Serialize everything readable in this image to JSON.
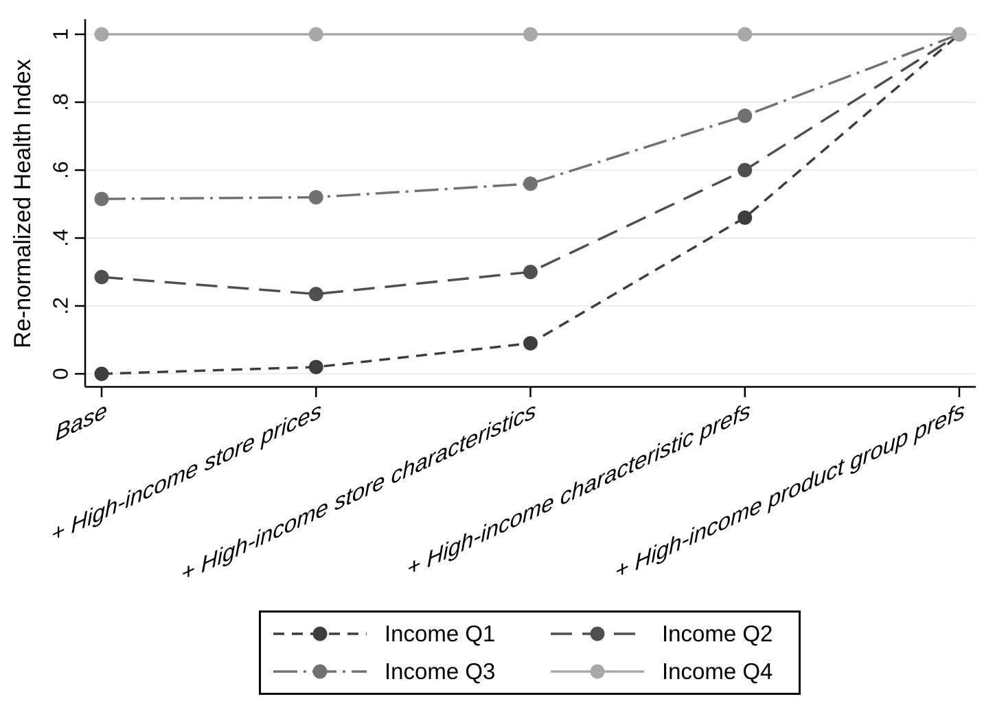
{
  "chart_data": {
    "type": "line",
    "title": "",
    "xlabel": "",
    "ylabel": "Re-normalized Health Index",
    "categories": [
      "Base",
      "+ High-income store prices",
      "+ High-income store characteristics",
      "+ High-income characteristic prefs",
      "+ High-income product group prefs"
    ],
    "yticks": {
      "values": [
        0,
        0.2,
        0.4,
        0.6,
        0.8,
        1
      ],
      "labels": [
        "0",
        ".2",
        ".4",
        ".6",
        ".8",
        "1"
      ]
    },
    "ylim": [
      0,
      1
    ],
    "grid": true,
    "gridline_color": "#ececec",
    "axis_color": "#000000",
    "legend_position": "bottom",
    "series": [
      {
        "name": "Income Q1",
        "line_style": "short-dash",
        "dash": "16 11",
        "color": "#3d3d3d",
        "values": [
          0.0,
          0.02,
          0.09,
          0.46,
          1
        ]
      },
      {
        "name": "Income Q2",
        "line_style": "long-dash",
        "dash": "31 15",
        "color": "#4f4f4f",
        "values": [
          0.285,
          0.235,
          0.3,
          0.6,
          1
        ]
      },
      {
        "name": "Income Q3",
        "line_style": "dash-dot",
        "dash": "35 9 4 9",
        "color": "#717171",
        "values": [
          0.515,
          0.52,
          0.56,
          0.76,
          1
        ]
      },
      {
        "name": "Income Q4",
        "line_style": "solid",
        "dash": "",
        "color": "#a8a8a8",
        "values": [
          1,
          1,
          1,
          1,
          1
        ]
      }
    ]
  }
}
